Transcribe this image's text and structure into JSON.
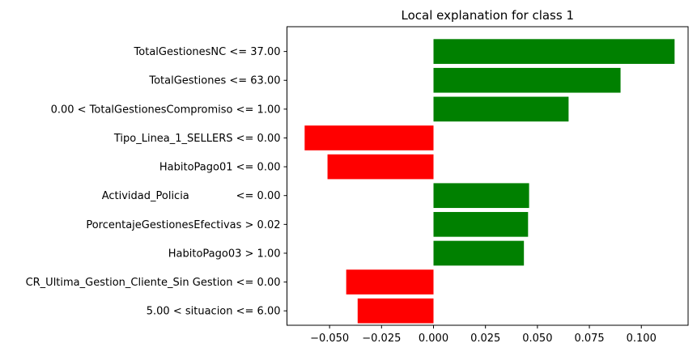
{
  "chart_data": {
    "type": "bar",
    "orientation": "horizontal",
    "title": "Local explanation for class 1",
    "xlabel": "",
    "ylabel": "",
    "xlim": [
      -0.0705,
      0.1225
    ],
    "xticks": [
      -0.05,
      -0.025,
      0.0,
      0.025,
      0.05,
      0.075,
      0.1
    ],
    "xtick_labels": [
      "−0.050",
      "−0.025",
      "0.000",
      "0.025",
      "0.050",
      "0.075",
      "0.100"
    ],
    "categories": [
      "TotalGestionesNC <= 37.00",
      "TotalGestiones <= 63.00",
      "0.00 < TotalGestionesCompromiso <= 1.00",
      "Tipo_Linea_1_SELLERS <= 0.00",
      "HabitoPago01 <= 0.00",
      "Actividad_Policia              <= 0.00",
      "PorcentajeGestionesEfectivas > 0.02",
      "HabitoPago03 > 1.00",
      "CR_Ultima_Gestion_Cliente_Sin Gestion <= 0.00",
      "5.00 < situacion <= 6.00"
    ],
    "values": [
      0.116,
      0.09,
      0.065,
      -0.062,
      -0.051,
      0.046,
      0.0455,
      0.0435,
      -0.042,
      -0.0365
    ],
    "positive_color": "#008000",
    "negative_color": "#ff0000",
    "grid": false,
    "legend": "none"
  }
}
